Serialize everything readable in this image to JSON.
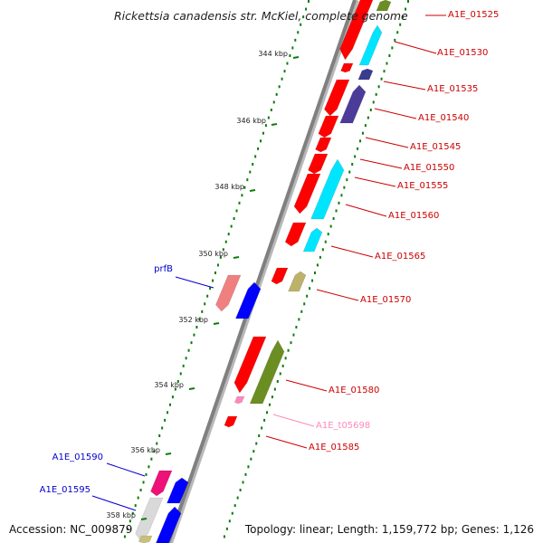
{
  "title": "Rickettsia canadensis str. McKiel, complete genome",
  "footer": {
    "accession": "Accession: NC_009879",
    "topology": "Topology: linear; Length: 1,159,772 bp; Genes: 1,126"
  },
  "colors": {
    "backbone": "#808080",
    "forward_gene": "#0000ff",
    "reverse_gene": "#ff0000",
    "tick": "#0b7d0b",
    "label_reverse": "#cc0000",
    "label_forward": "#0000cc",
    "label_trna": "#ff88bb"
  },
  "ruler": [
    {
      "label": "344 kbp"
    },
    {
      "label": "346 kbp"
    },
    {
      "label": "348 kbp"
    },
    {
      "label": "350 kbp"
    },
    {
      "label": "352 kbp"
    },
    {
      "label": "354 kbp"
    },
    {
      "label": "356 kbp"
    },
    {
      "label": "358 kbp"
    }
  ],
  "gene_labels": [
    {
      "text": "A1E_01525",
      "strand": "reverse"
    },
    {
      "text": "A1E_01530",
      "strand": "reverse"
    },
    {
      "text": "A1E_01535",
      "strand": "reverse"
    },
    {
      "text": "A1E_01540",
      "strand": "reverse"
    },
    {
      "text": "A1E_01545",
      "strand": "reverse"
    },
    {
      "text": "A1E_01550",
      "strand": "reverse"
    },
    {
      "text": "A1E_01555",
      "strand": "reverse"
    },
    {
      "text": "A1E_01560",
      "strand": "reverse"
    },
    {
      "text": "A1E_01565",
      "strand": "reverse"
    },
    {
      "text": "A1E_01570",
      "strand": "reverse"
    },
    {
      "text": "prfB",
      "strand": "forward"
    },
    {
      "text": "A1E_01580",
      "strand": "reverse"
    },
    {
      "text": "A1E_t05698",
      "strand": "trna"
    },
    {
      "text": "A1E_01585",
      "strand": "reverse"
    },
    {
      "text": "A1E_01590",
      "strand": "forward"
    },
    {
      "text": "A1E_01595",
      "strand": "forward"
    }
  ]
}
